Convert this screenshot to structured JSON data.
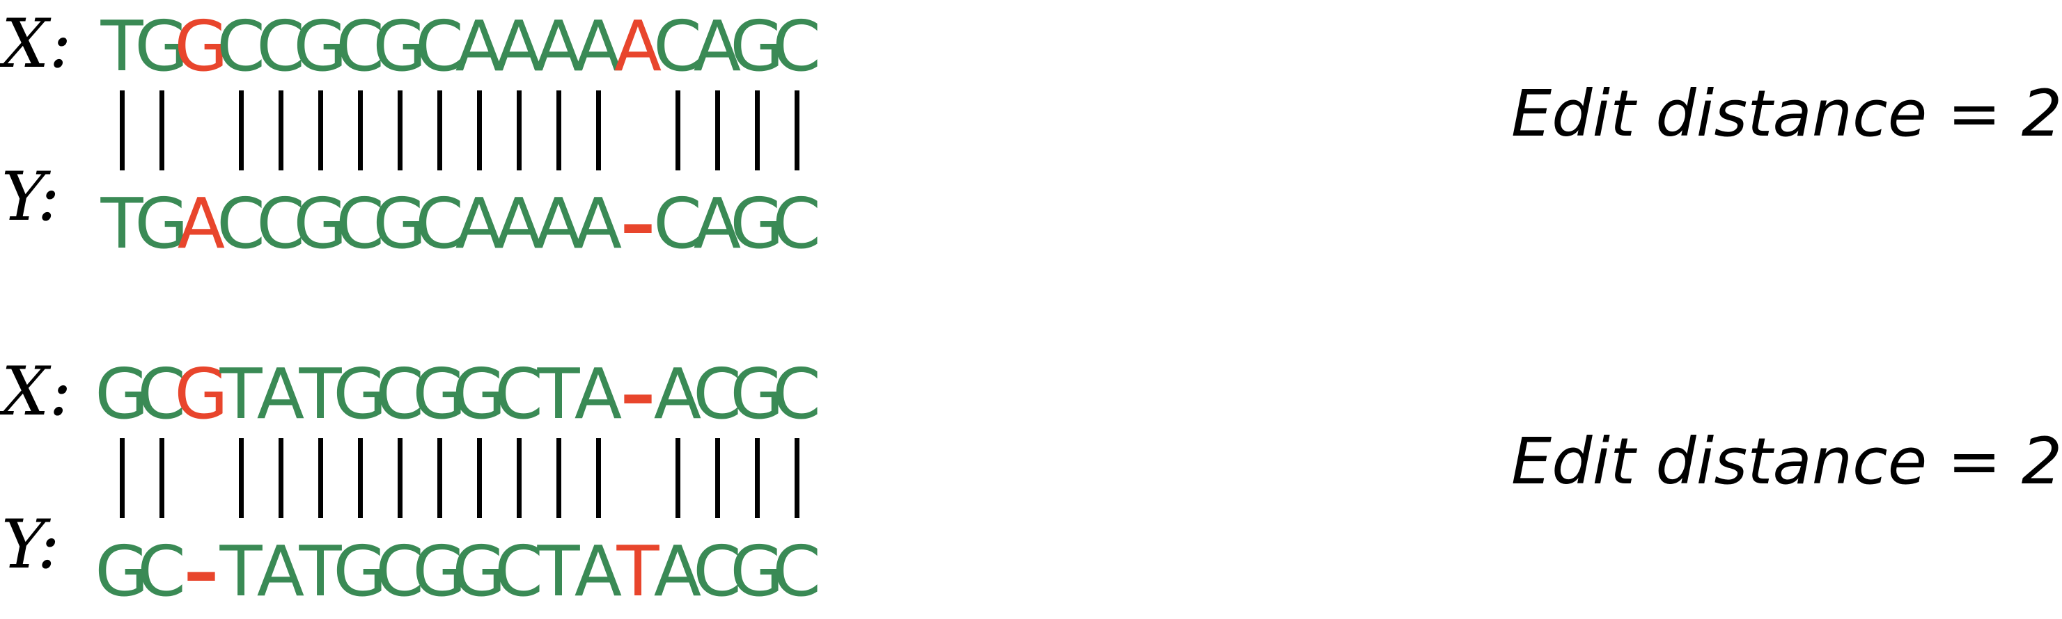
{
  "colors": {
    "match": "#3a8a55",
    "mismatch": "#e8452c",
    "bar": "#000000",
    "label": "#000000"
  },
  "alignments": [
    {
      "x_label": "X:",
      "y_label": "Y:",
      "x_sequence": [
        "T",
        "G",
        "G",
        "C",
        "C",
        "G",
        "C",
        "G",
        "C",
        "A",
        "A",
        "A",
        "A",
        "A",
        "C",
        "A",
        "G",
        "C"
      ],
      "y_sequence": [
        "T",
        "G",
        "A",
        "C",
        "C",
        "G",
        "C",
        "G",
        "C",
        "A",
        "A",
        "A",
        "A",
        "–",
        "C",
        "A",
        "G",
        "C"
      ],
      "mismatch_positions": [
        2,
        13
      ],
      "edit_distance_label": "Edit distance = 2"
    },
    {
      "x_label": "X:",
      "y_label": "Y:",
      "x_sequence": [
        "G",
        "C",
        "G",
        "T",
        "A",
        "T",
        "G",
        "C",
        "G",
        "G",
        "C",
        "T",
        "A",
        "–",
        "A",
        "C",
        "G",
        "C"
      ],
      "y_sequence": [
        "G",
        "C",
        "–",
        "T",
        "A",
        "T",
        "G",
        "C",
        "G",
        "G",
        "C",
        "T",
        "A",
        "T",
        "A",
        "C",
        "G",
        "C"
      ],
      "mismatch_positions": [
        2,
        13
      ],
      "edit_distance_label": "Edit distance = 2"
    }
  ]
}
